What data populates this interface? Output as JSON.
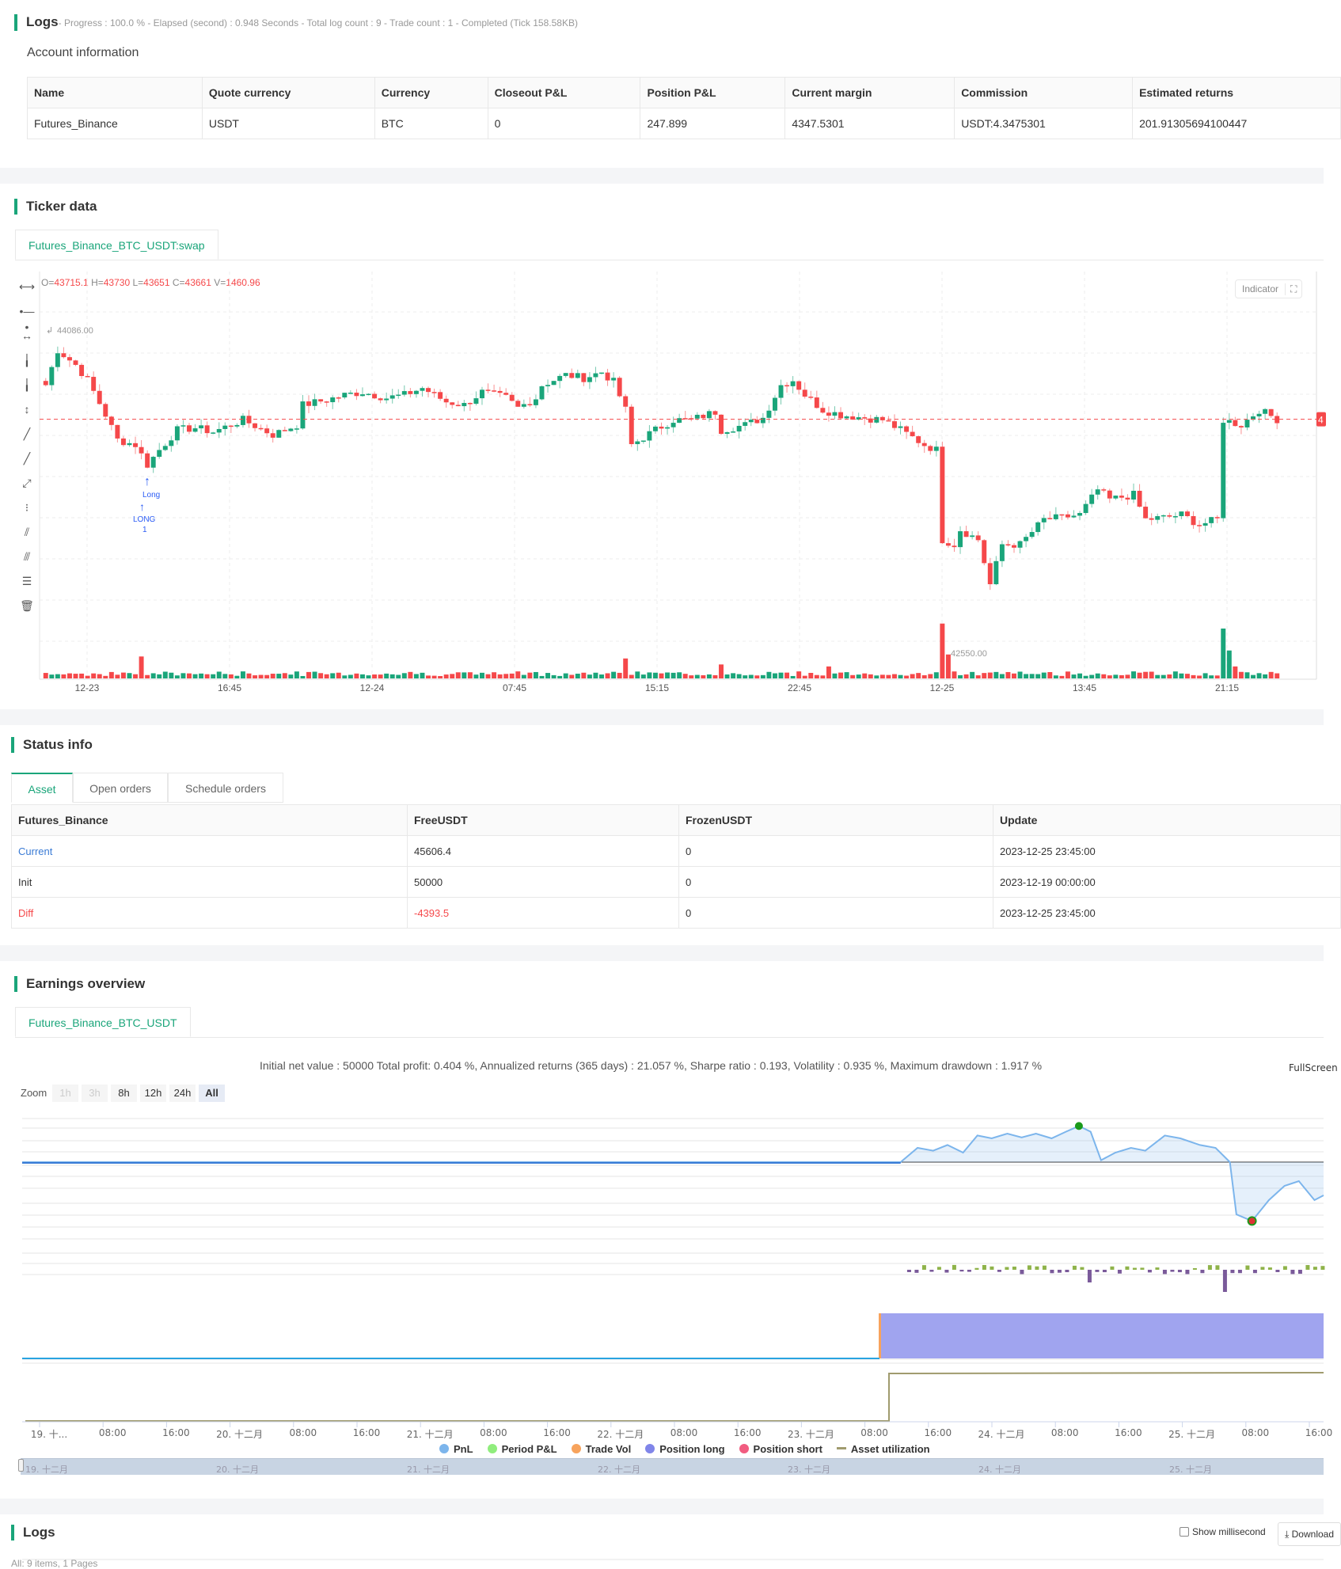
{
  "header": {
    "title": "Logs",
    "progress": "- Progress : 100.0 % - Elapsed (second) : 0.948  Seconds - Total log count : 9 - Trade count : 1 - Completed (Tick 158.58KB)"
  },
  "account": {
    "title": "Account information",
    "columns": [
      "Name",
      "Quote currency",
      "Currency",
      "Closeout P&L",
      "Position P&L",
      "Current margin",
      "Commission",
      "Estimated returns"
    ],
    "row": [
      "Futures_Binance",
      "USDT",
      "BTC",
      "0",
      "247.899",
      "4347.5301",
      "USDT:4.3475301",
      "201.91305694100447"
    ]
  },
  "ticker": {
    "title": "Ticker data",
    "tab": "Futures_Binance_BTC_USDT:swap",
    "ohlc": {
      "o_label": "O=",
      "o": "43715.1",
      "h_label": " H=",
      "h": "43730",
      "l_label": " L=",
      "l": "43651",
      "c_label": " C=",
      "c": "43661",
      "v_label": " V=",
      "v": "1460.96"
    },
    "indicator_label": "Indicator",
    "high_label": "44086.00",
    "low_label": "42550.00",
    "marker_long": "Long",
    "marker_text": "LONG",
    "marker_qty": "1",
    "last_price_badge": "4",
    "time_labels": [
      "12-23",
      "16:45",
      "12-24",
      "07:45",
      "15:15",
      "22:45",
      "12-25",
      "13:45",
      "21:15"
    ]
  },
  "chart_data": {
    "type": "candlestick",
    "ylim": [
      42550,
      44086
    ],
    "last_price": 43661,
    "colors": {
      "up": "#1aa57a",
      "down": "#f5484a"
    },
    "close_anchors": [
      [
        0,
        43824
      ],
      [
        2,
        43991
      ],
      [
        5,
        43920
      ],
      [
        7,
        43848
      ],
      [
        10,
        43682
      ],
      [
        12,
        43563
      ],
      [
        15,
        43539
      ],
      [
        17,
        43444
      ],
      [
        19,
        43515
      ],
      [
        22,
        43610
      ],
      [
        25,
        43620
      ],
      [
        28,
        43601
      ],
      [
        33,
        43658
      ],
      [
        38,
        43587
      ],
      [
        42,
        43634
      ],
      [
        43,
        43729
      ],
      [
        47,
        43753
      ],
      [
        50,
        43777
      ],
      [
        53,
        43791
      ],
      [
        57,
        43763
      ],
      [
        60,
        43777
      ],
      [
        63,
        43810
      ],
      [
        67,
        43744
      ],
      [
        70,
        43729
      ],
      [
        73,
        43791
      ],
      [
        77,
        43763
      ],
      [
        79,
        43715
      ],
      [
        82,
        43763
      ],
      [
        83,
        43824
      ],
      [
        87,
        43872
      ],
      [
        90,
        43858
      ],
      [
        93,
        43886
      ],
      [
        95,
        43839
      ],
      [
        97,
        43706
      ],
      [
        98,
        43539
      ],
      [
        102,
        43610
      ],
      [
        105,
        43658
      ],
      [
        108,
        43658
      ],
      [
        112,
        43696
      ],
      [
        113,
        43610
      ],
      [
        117,
        43634
      ],
      [
        120,
        43668
      ],
      [
        123,
        43824
      ],
      [
        125,
        43848
      ],
      [
        127,
        43777
      ],
      [
        130,
        43706
      ],
      [
        133,
        43682
      ],
      [
        137,
        43668
      ],
      [
        140,
        43658
      ],
      [
        143,
        43610
      ],
      [
        147,
        43539
      ],
      [
        149,
        43515
      ],
      [
        150,
        43087
      ],
      [
        152,
        43064
      ],
      [
        153,
        43135
      ],
      [
        156,
        43087
      ],
      [
        158,
        42873
      ],
      [
        160,
        43064
      ],
      [
        163,
        43064
      ],
      [
        167,
        43183
      ],
      [
        170,
        43192
      ],
      [
        173,
        43206
      ],
      [
        176,
        43325
      ],
      [
        178,
        43278
      ],
      [
        182,
        43301
      ],
      [
        184,
        43183
      ],
      [
        187,
        43192
      ],
      [
        190,
        43206
      ],
      [
        193,
        43159
      ],
      [
        196,
        43183
      ],
      [
        197,
        43658
      ],
      [
        200,
        43634
      ],
      [
        203,
        43706
      ],
      [
        206,
        43661
      ]
    ],
    "volume_spikes": [
      [
        16,
        22
      ],
      [
        97,
        20
      ],
      [
        113,
        14
      ],
      [
        131,
        12
      ],
      [
        150,
        55
      ],
      [
        151,
        24
      ],
      [
        197,
        50
      ],
      [
        198,
        28
      ],
      [
        199,
        12
      ]
    ]
  },
  "status": {
    "title": "Status info",
    "tabs": [
      "Asset",
      "Open orders",
      "Schedule orders"
    ],
    "columns": [
      "Futures_Binance",
      "FreeUSDT",
      "FrozenUSDT",
      "Update"
    ],
    "rows": [
      [
        "Current",
        "45606.4",
        "0",
        "2023-12-25 23:45:00"
      ],
      [
        "Init",
        "50000",
        "0",
        "2023-12-19 00:00:00"
      ],
      [
        "Diff",
        "-4393.5",
        "0",
        "2023-12-25 23:45:00"
      ]
    ]
  },
  "earnings": {
    "title": "Earnings overview",
    "tab": "Futures_Binance_BTC_USDT",
    "summary": "Initial net value : 50000 Total profit: 0.404 %, Annualized returns (365 days) : 21.057 %, Sharpe ratio : 0.193, Volatility : 0.935 %, Maximum drawdown : 1.917 %",
    "fullscreen": "FullScreen",
    "zoom_label": "Zoom",
    "zoom_options": [
      "1h",
      "3h",
      "8h",
      "12h",
      "24h",
      "All"
    ],
    "legend": [
      "PnL",
      "Period P&L",
      "Trade Vol",
      "Position long",
      "Position short",
      "Asset utilization"
    ],
    "legend_colors": [
      "#7cb5ec",
      "#90ed7d",
      "#f7a35c",
      "#8085e9",
      "#f15c80",
      "#a09b6e"
    ],
    "x_labels": [
      "19. 十...",
      "08:00",
      "16:00",
      "20. 十二月",
      "08:00",
      "16:00",
      "21. 十二月",
      "08:00",
      "16:00",
      "22. 十二月",
      "08:00",
      "16:00",
      "23. 十二月",
      "08:00",
      "16:00",
      "24. 十二月",
      "08:00",
      "16:00",
      "25. 十二月",
      "08:00",
      "16:00"
    ],
    "nav_labels": [
      "19. 十二月",
      "20. 十二月",
      "21. 十二月",
      "22. 十二月",
      "23. 十二月",
      "24. 十二月",
      "25. 十二月"
    ]
  },
  "chart_data_pnl": {
    "type": "line",
    "x_range": [
      0,
      1
    ],
    "pnl_points": [
      [
        0,
        0
      ],
      [
        0.675,
        0
      ],
      [
        0.688,
        300
      ],
      [
        0.7,
        240
      ],
      [
        0.711,
        360
      ],
      [
        0.723,
        200
      ],
      [
        0.734,
        560
      ],
      [
        0.745,
        500
      ],
      [
        0.757,
        600
      ],
      [
        0.768,
        520
      ],
      [
        0.779,
        600
      ],
      [
        0.791,
        500
      ],
      [
        0.802,
        640
      ],
      [
        0.812,
        760
      ],
      [
        0.821,
        640
      ],
      [
        0.829,
        40
      ],
      [
        0.84,
        200
      ],
      [
        0.852,
        300
      ],
      [
        0.863,
        240
      ],
      [
        0.878,
        560
      ],
      [
        0.89,
        500
      ],
      [
        0.905,
        360
      ],
      [
        0.917,
        300
      ],
      [
        0.928,
        0
      ],
      [
        0.933,
        -1100
      ],
      [
        0.945,
        -1240
      ],
      [
        0.958,
        -800
      ],
      [
        0.97,
        -500
      ],
      [
        0.981,
        -400
      ],
      [
        0.993,
        -800
      ],
      [
        1,
        -700
      ]
    ]
  },
  "logs": {
    "title": "Logs",
    "show_ms": "Show millisecond",
    "download": "Download",
    "footer": "All: 9 items, 1 Pages"
  }
}
